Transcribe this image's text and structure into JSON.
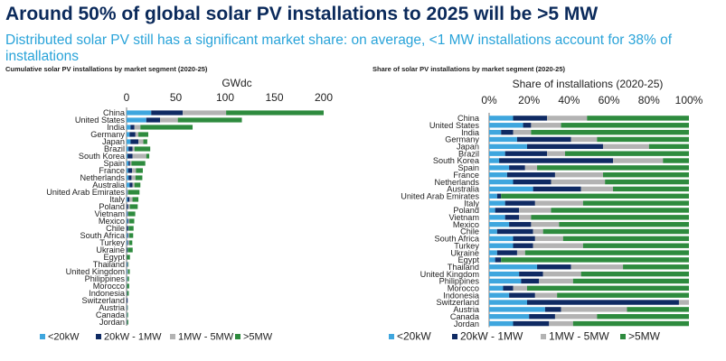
{
  "title": "Around 50% of global solar PV installations to 2025 will be >5 MW",
  "subtitle": "Distributed solar PV still has a significant market share: on average, <1 MW installations account for 38% of installations",
  "colors": {
    "title": "#0b2a5b",
    "subtitle": "#29a3d9",
    "lt20kw": "#3ea6de",
    "k20_1mw": "#0f2a63",
    "mw1_5": "#b3b3b3",
    "gt5mw": "#2e8b3e"
  },
  "chart_data": [
    {
      "type": "bar",
      "orientation": "horizontal",
      "stacked": true,
      "title": "Cumulative solar PV installations by market segment (2020-25)",
      "xlabel": "GWdc",
      "xlim": [
        0,
        200
      ],
      "xticks": [
        "0",
        "50",
        "100",
        "150",
        "200"
      ],
      "grid": false,
      "legend_position": "bottom",
      "categories": [
        "China",
        "United States",
        "India",
        "Germany",
        "Japan",
        "Brazil",
        "South Korea",
        "Spain",
        "France",
        "Netherlands",
        "Australia",
        "United Arab Emirates",
        "Italy",
        "Poland",
        "Vietnam",
        "Mexico",
        "Chile",
        "South Africa",
        "Turkey",
        "Ukraine",
        "Egypt",
        "Thailand",
        "United Kingdom",
        "Philippines",
        "Morocco",
        "Indonesia",
        "Switzerland",
        "Austria",
        "Canada",
        "Jordan"
      ],
      "series": [
        {
          "name": "<20kW",
          "values": [
            25,
            20,
            4,
            3,
            4,
            2,
            1,
            2,
            1.5,
            2,
            3,
            0.5,
            1,
            0.3,
            0.7,
            0.8,
            0.3,
            0.8,
            0.7,
            0.3,
            0.1,
            0.5,
            0.5,
            0.4,
            0.2,
            0.2,
            0.2,
            0.3,
            0.3,
            0.2
          ]
        },
        {
          "name": "20kW - 1MW",
          "values": [
            32,
            14,
            4,
            6,
            8,
            4,
            5,
            1.5,
            4,
            3,
            3,
            0.3,
            2,
            1.2,
            0.6,
            0.9,
            1.4,
            0.7,
            0.6,
            0.6,
            0.2,
            0.4,
            0.3,
            0.3,
            0.2,
            0.3,
            0.9,
            0.4,
            0.2,
            0.3
          ]
        },
        {
          "name": "1MW - 5MW",
          "values": [
            44,
            18,
            6,
            3,
            5,
            2,
            14,
            1.5,
            4,
            4,
            2,
            0.8,
            3,
            1.8,
            0.5,
            1.1,
            0.4,
            1.2,
            1.5,
            0.3,
            0.1,
            0.6,
            0.8,
            0.4,
            0.2,
            0.2,
            0.1,
            0.3,
            0.3,
            0.2
          ]
        },
        {
          "name": ">5MW",
          "values": [
            99,
            65,
            53,
            10,
            4,
            16,
            3,
            14,
            7,
            7,
            6,
            11.5,
            6,
            8,
            7,
            5,
            5,
            4,
            3,
            5,
            3,
            0.5,
            1.6,
            1.4,
            2,
            1.5,
            0,
            0.3,
            0.7,
            1
          ]
        }
      ]
    },
    {
      "type": "bar",
      "orientation": "horizontal",
      "stacked": true,
      "percent": true,
      "title": "Share of solar PV installations by market segment (2020-25)",
      "xlabel": "Share of installations (2020-25)",
      "xlim": [
        0,
        100
      ],
      "xticks": [
        "0%",
        "20%",
        "40%",
        "60%",
        "80%",
        "100%"
      ],
      "grid": false,
      "legend_position": "bottom",
      "categories": [
        "China",
        "United States",
        "India",
        "Germany",
        "Japan",
        "Brazil",
        "South Korea",
        "Spain",
        "France",
        "Netherlands",
        "Australia",
        "United Arab Emirates",
        "Italy",
        "Poland",
        "Vietnam",
        "Mexico",
        "Chile",
        "South Africa",
        "Turkey",
        "Ukraine",
        "Egypt",
        "Thailand",
        "United Kingdom",
        "Philippines",
        "Morocco",
        "Indonesia",
        "Switzerland",
        "Austria",
        "Canada",
        "Jordan"
      ],
      "series": [
        {
          "name": "<20kW",
          "values": [
            12,
            17,
            6,
            14,
            19,
            8,
            5,
            10,
            9,
            12,
            22,
            4,
            8,
            3,
            8,
            10,
            4,
            12,
            12,
            4,
            3,
            24,
            15,
            16,
            7,
            10,
            19,
            28,
            20,
            12
          ]
        },
        {
          "name": "20kW - 1MW",
          "values": [
            17,
            4,
            6,
            27,
            38,
            21,
            57,
            8,
            24,
            19,
            24,
            2,
            15,
            12,
            7,
            11,
            18,
            11,
            10,
            10,
            3,
            17,
            12,
            9,
            5,
            13,
            76,
            8,
            13,
            18
          ]
        },
        {
          "name": "1MW - 5MW",
          "values": [
            20,
            15,
            9,
            13,
            23,
            9,
            25,
            6,
            24,
            27,
            16,
            0,
            24,
            16,
            6,
            14,
            5,
            14,
            25,
            4,
            0,
            26,
            19,
            17,
            7,
            11,
            5,
            33,
            21,
            12
          ]
        },
        {
          "name": ">5MW",
          "values": [
            51,
            64,
            79,
            46,
            20,
            62,
            13,
            76,
            43,
            42,
            38,
            94,
            53,
            69,
            79,
            65,
            73,
            63,
            53,
            82,
            94,
            33,
            54,
            58,
            81,
            66,
            0,
            31,
            46,
            58
          ]
        }
      ]
    }
  ]
}
